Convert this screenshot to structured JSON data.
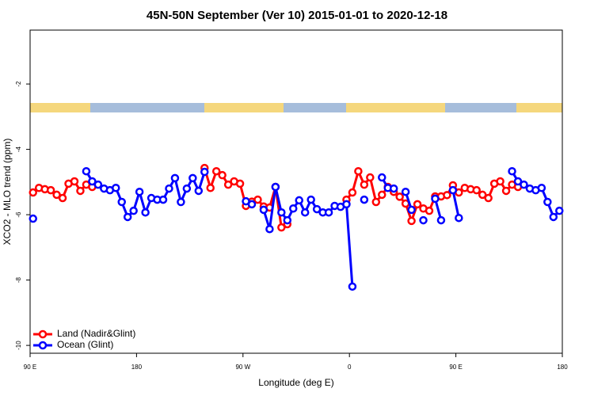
{
  "chart_data": {
    "type": "line",
    "title": "45N-50N September (Ver 10)   2015-01-01 to 2020-12-18",
    "x_label": "Longitude (deg E)",
    "y_label": "XCO2 - MLO trend (ppm)",
    "x": [
      92.5,
      97.5,
      102.5,
      107.5,
      112.5,
      117.5,
      122.5,
      127.5,
      132.5,
      137.5,
      142.5,
      147.5,
      152.5,
      157.5,
      162.5,
      167.5,
      172.5,
      177.5,
      182.5,
      187.5,
      192.5,
      197.5,
      202.5,
      207.5,
      212.5,
      217.5,
      222.5,
      227.5,
      232.5,
      237.5,
      242.5,
      247.5,
      252.5,
      257.5,
      262.5,
      267.5,
      272.5,
      277.5,
      282.5,
      287.5,
      292.5,
      297.5,
      302.5,
      307.5,
      312.5,
      317.5,
      322.5,
      327.5,
      332.5,
      337.5,
      342.5,
      347.5,
      352.5,
      357.5,
      362.5,
      367.5,
      372.5,
      377.5,
      382.5,
      387.5,
      392.5,
      397.5,
      402.5,
      407.5,
      412.5,
      417.5,
      422.5,
      427.5,
      432.5,
      437.5,
      442.5,
      447.5,
      452.5,
      457.5,
      462.5,
      467.5,
      472.5,
      477.5,
      482.5,
      487.5,
      492.5,
      497.5,
      502.5,
      507.5,
      512.5,
      517.5,
      522.5,
      527.5,
      532.5,
      537.5
    ],
    "series": [
      {
        "name": "Land (Nadir&Glint)",
        "color": "#ff0000",
        "values": [
          -5.32,
          -5.18,
          -5.22,
          -5.25,
          -5.39,
          -5.49,
          -5.05,
          -4.98,
          -5.27,
          -5.08,
          -5.15,
          null,
          null,
          null,
          null,
          null,
          null,
          null,
          null,
          null,
          null,
          null,
          null,
          null,
          null,
          null,
          null,
          null,
          null,
          -4.57,
          -5.18,
          -4.67,
          -4.79,
          -5.08,
          -4.98,
          -5.05,
          -5.73,
          -5.6,
          -5.54,
          -5.75,
          -5.78,
          -5.15,
          -6.39,
          -6.29,
          null,
          null,
          null,
          null,
          null,
          null,
          null,
          null,
          null,
          -5.54,
          -5.32,
          -4.67,
          -5.08,
          -4.86,
          -5.61,
          -5.39,
          -5.15,
          -5.3,
          -5.45,
          -5.66,
          -6.19,
          -5.68,
          -5.81,
          -5.88,
          -5.44,
          -5.44,
          -5.4,
          -5.1,
          -5.32,
          -5.18,
          -5.22,
          -5.25,
          -5.39,
          -5.49,
          -5.05,
          -4.98,
          -5.27,
          -5.08,
          -5.15,
          null,
          null,
          null,
          null,
          null,
          null,
          null
        ]
      },
      {
        "name": "Ocean (Glint)",
        "color": "#0000ff",
        "values": [
          -6.12,
          null,
          null,
          null,
          null,
          null,
          null,
          null,
          null,
          -4.67,
          -4.98,
          -5.08,
          -5.2,
          -5.25,
          -5.18,
          -5.61,
          -6.07,
          -5.88,
          -5.3,
          -5.93,
          -5.49,
          -5.54,
          -5.54,
          -5.2,
          -4.88,
          -5.61,
          -5.2,
          -4.88,
          -5.27,
          -4.69,
          null,
          null,
          null,
          null,
          null,
          null,
          -5.59,
          -5.68,
          null,
          -5.85,
          -6.44,
          -5.15,
          -5.93,
          -6.17,
          -5.81,
          -5.56,
          -5.93,
          -5.54,
          -5.83,
          -5.93,
          -5.93,
          -5.73,
          -5.76,
          -5.68,
          -8.2,
          null,
          -5.54,
          null,
          null,
          -4.86,
          -5.18,
          -5.2,
          null,
          -5.3,
          -5.85,
          null,
          -6.17,
          null,
          -5.51,
          -6.17,
          null,
          -5.25,
          -6.1,
          null,
          null,
          null,
          null,
          null,
          null,
          null,
          null,
          -4.67,
          -4.98,
          -5.08,
          -5.2,
          -5.25,
          -5.18,
          -5.61,
          -6.07,
          -5.88
        ]
      }
    ],
    "xlim": [
      90,
      540
    ],
    "ylim": [
      -10.24,
      -0.35
    ],
    "xticks": [
      {
        "value": 90,
        "label": "90 E"
      },
      180,
      {
        "value": 270,
        "label": "90 W"
      },
      {
        "value": 360,
        "label": "0"
      },
      {
        "value": 450,
        "label": "90 E"
      },
      {
        "value": 540,
        "label": "180"
      }
    ],
    "yticks": [
      -2,
      -4,
      -6,
      -8,
      -10
    ],
    "legend": "bottom-left"
  }
}
